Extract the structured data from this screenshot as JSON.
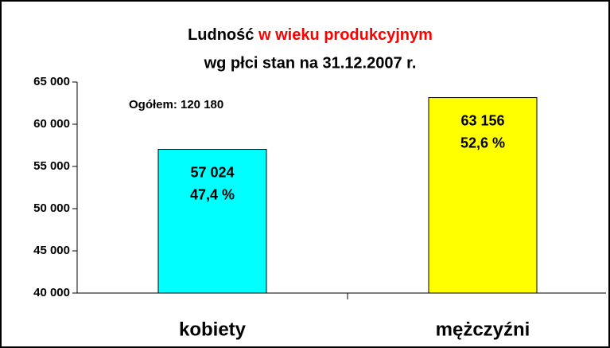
{
  "chart_data": {
    "type": "bar",
    "title": "Ludność",
    "title_highlight": "w wieku produkcyjnym",
    "subtitle": "wg płci stan na 31.12.2007 r.",
    "annotation": "Ogółem: 120 180",
    "categories": [
      "kobiety",
      "mężczyźni"
    ],
    "values": [
      57024,
      63156
    ],
    "value_labels": [
      "57 024",
      "63 156"
    ],
    "share_labels": [
      "47,4 %",
      "52,6 %"
    ],
    "colors": [
      "#00ffff",
      "#ffff00"
    ],
    "ylim": [
      40000,
      65000
    ],
    "yticks": [
      {
        "value": 40000,
        "label": "40 000"
      },
      {
        "value": 45000,
        "label": "45 000"
      },
      {
        "value": 50000,
        "label": "50 000"
      },
      {
        "value": 55000,
        "label": "55 000"
      },
      {
        "value": 60000,
        "label": "60 000"
      },
      {
        "value": 65000,
        "label": "65 000"
      }
    ],
    "grid": false
  }
}
